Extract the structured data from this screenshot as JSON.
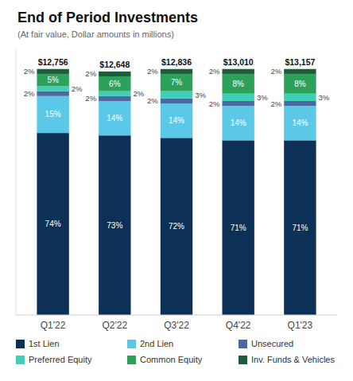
{
  "chart_data": {
    "type": "bar",
    "stacked": true,
    "title": "End of Period Investments",
    "subtitle": "(At fair value, Dollar amounts in millions)",
    "categories": [
      "Q1'22",
      "Q2'22",
      "Q3'22",
      "Q4'22",
      "Q1'23"
    ],
    "series": [
      {
        "name": "1st Lien",
        "color": "#0d3057",
        "values": [
          74,
          73,
          72,
          71,
          71
        ],
        "value_labels": [
          "74%",
          "73%",
          "72%",
          "71%",
          "71%"
        ]
      },
      {
        "name": "2nd Lien",
        "color": "#5bc8e8",
        "values": [
          15,
          14,
          14,
          14,
          14
        ],
        "value_labels": [
          "15%",
          "14%",
          "14%",
          "14%",
          "14%"
        ]
      },
      {
        "name": "Unsecured",
        "color": "#4a69a0",
        "values": [
          2,
          2,
          2,
          2,
          2
        ],
        "value_labels": [
          "2%",
          "2%",
          "2%",
          "2%",
          "2%"
        ]
      },
      {
        "name": "Preferred Equity",
        "color": "#3ecfb8",
        "values": [
          2,
          2,
          3,
          3,
          3
        ],
        "value_labels": [
          "2%",
          "2%",
          "3%",
          "3%",
          "3%"
        ]
      },
      {
        "name": "Common Equity",
        "color": "#2da05a",
        "values": [
          5,
          6,
          7,
          8,
          8
        ],
        "value_labels": [
          "5%",
          "6%",
          "7%",
          "8%",
          "8%"
        ]
      },
      {
        "name": "Inv. Funds & Vehicles",
        "color": "#1b5e3b",
        "values": [
          2,
          2,
          2,
          2,
          2
        ],
        "value_labels": [
          "2%",
          "2%",
          "2%",
          "2%",
          "2%"
        ]
      }
    ],
    "annotations": [
      "$12,756",
      "$12,648",
      "$12,836",
      "$13,010",
      "$13,157"
    ],
    "ylim": [
      0,
      108
    ],
    "data_labels": true,
    "tick_labels": "x",
    "grid": false,
    "legend": "bottom"
  }
}
